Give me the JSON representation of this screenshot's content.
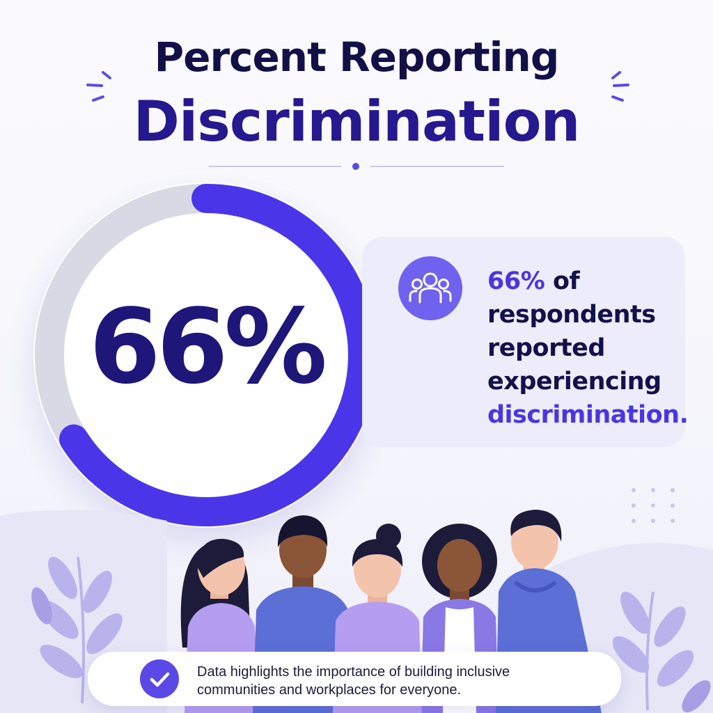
{
  "title": {
    "line1": "Percent Reporting",
    "line2": "Discrimination"
  },
  "chart_data": {
    "type": "pie",
    "title": "Percent Reporting Discrimination",
    "value": 66,
    "display_value": "66%",
    "slices": [
      {
        "value": 66,
        "color": "#4a36e8"
      },
      {
        "value": 34,
        "color": "#d9d9e6"
      }
    ]
  },
  "callout": {
    "value": "66%",
    "text_part1": "of respondents reported experiencing",
    "text_part2": "discrimination."
  },
  "footer": {
    "text": "Data highlights the importance of building inclusive communities and workplaces for everyone."
  },
  "icons": {
    "callout": "people-group-icon",
    "footer": "checkmark-icon"
  },
  "colors": {
    "accent": "#4a36e8",
    "track": "#d9d9e6",
    "title_primary": "#121047",
    "title_secondary": "#26188f",
    "shirt_purple": "#b59df0",
    "shirt_blue": "#5b6fd6"
  }
}
